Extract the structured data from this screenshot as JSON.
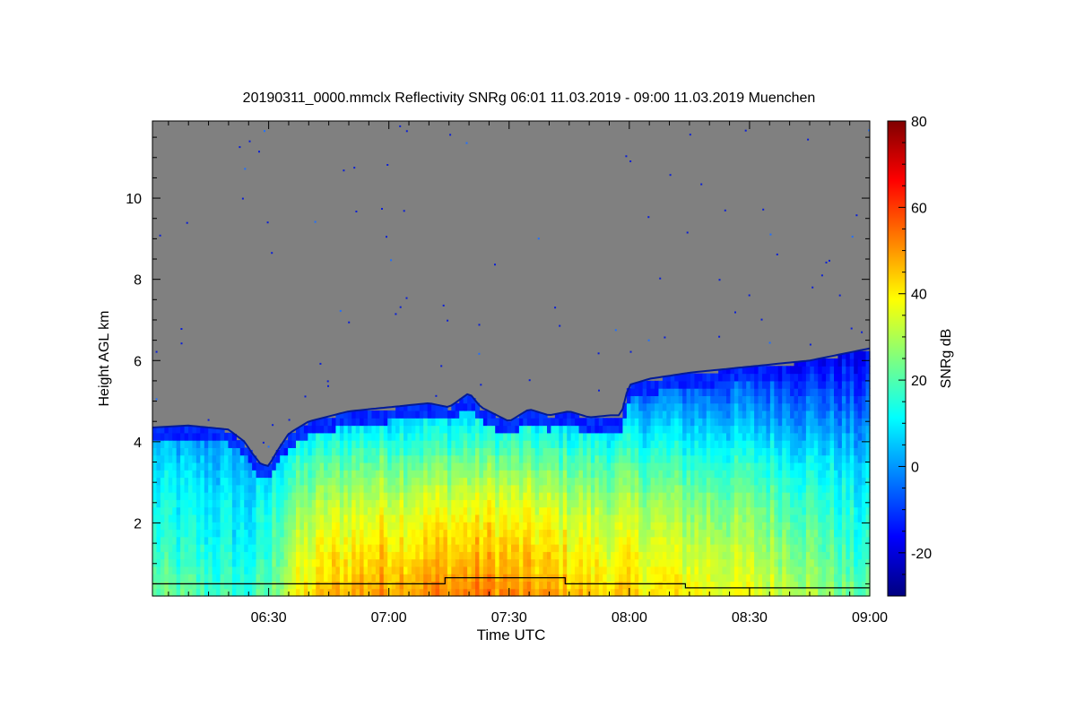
{
  "chart_data": {
    "type": "heatmap",
    "title": "20190311_0000.mmclx Reflectivity SNRg   06:01 11.03.2019 - 09:00 11.03.2019 Muenchen",
    "xlabel": "Time UTC",
    "ylabel": "Height AGL km",
    "x_ticks": [
      "06:30",
      "07:00",
      "07:30",
      "08:00",
      "08:30",
      "09:00"
    ],
    "x_tick_minutes": [
      30,
      60,
      90,
      120,
      150,
      180
    ],
    "xlim_minutes": [
      1,
      180
    ],
    "y_ticks": [
      "2",
      "4",
      "6",
      "8",
      "10"
    ],
    "y_tick_values": [
      2,
      4,
      6,
      8,
      10
    ],
    "ylim": [
      0.2,
      11.9
    ],
    "colorbar": {
      "label": "SNRg dB",
      "ticks": [
        "80",
        "60",
        "40",
        "20",
        "0",
        "-20"
      ],
      "tick_values": [
        80,
        60,
        40,
        20,
        0,
        -20
      ],
      "range": [
        -30,
        80
      ],
      "colors": [
        "#00007f",
        "#0000ff",
        "#007fff",
        "#00ffff",
        "#7fff7f",
        "#ffff00",
        "#ff7f00",
        "#ff0000",
        "#7f0000"
      ]
    },
    "background_color": "#808080",
    "cloud_top_km": {
      "time_minutes": [
        1,
        10,
        20,
        24,
        26,
        28,
        30,
        32,
        35,
        40,
        50,
        60,
        70,
        75,
        80,
        83,
        86,
        90,
        95,
        100,
        105,
        110,
        115,
        118,
        119,
        120,
        125,
        135,
        150,
        165,
        180
      ],
      "height_km": [
        4.35,
        4.4,
        4.3,
        4.0,
        3.7,
        3.45,
        3.4,
        3.75,
        4.2,
        4.5,
        4.75,
        4.85,
        4.95,
        4.85,
        5.2,
        4.85,
        4.7,
        4.5,
        4.8,
        4.65,
        4.75,
        4.6,
        4.65,
        4.65,
        5.1,
        5.4,
        5.55,
        5.7,
        5.85,
        6.0,
        6.3
      ]
    },
    "reflectivity_profile": {
      "height_km": [
        0.3,
        0.8,
        1.5,
        2.5,
        3.5,
        4.5,
        5.5,
        6.2
      ],
      "snr_db_clear_period": [
        10,
        8,
        5,
        3,
        0,
        -8,
        -15,
        -20
      ],
      "snr_db_precip_period": [
        52,
        48,
        44,
        36,
        24,
        10,
        -5,
        -15
      ]
    },
    "step_line": {
      "time_minutes": [
        1,
        74,
        74,
        104,
        104,
        134,
        134,
        180
      ],
      "height_km": [
        0.5,
        0.5,
        0.65,
        0.65,
        0.5,
        0.5,
        0.4,
        0.4
      ]
    }
  }
}
